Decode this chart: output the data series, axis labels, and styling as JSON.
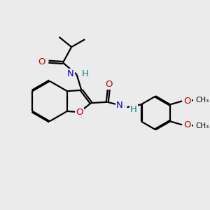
{
  "bg_color": "#ebebeb",
  "bond_color": "#000000",
  "N_color": "#0000cc",
  "O_color": "#cc0000",
  "H_color": "#008080",
  "line_width": 1.6,
  "dbo": 0.055,
  "figsize": [
    3.0,
    3.0
  ],
  "xlim": [
    0,
    10
  ],
  "ylim": [
    0,
    10
  ]
}
